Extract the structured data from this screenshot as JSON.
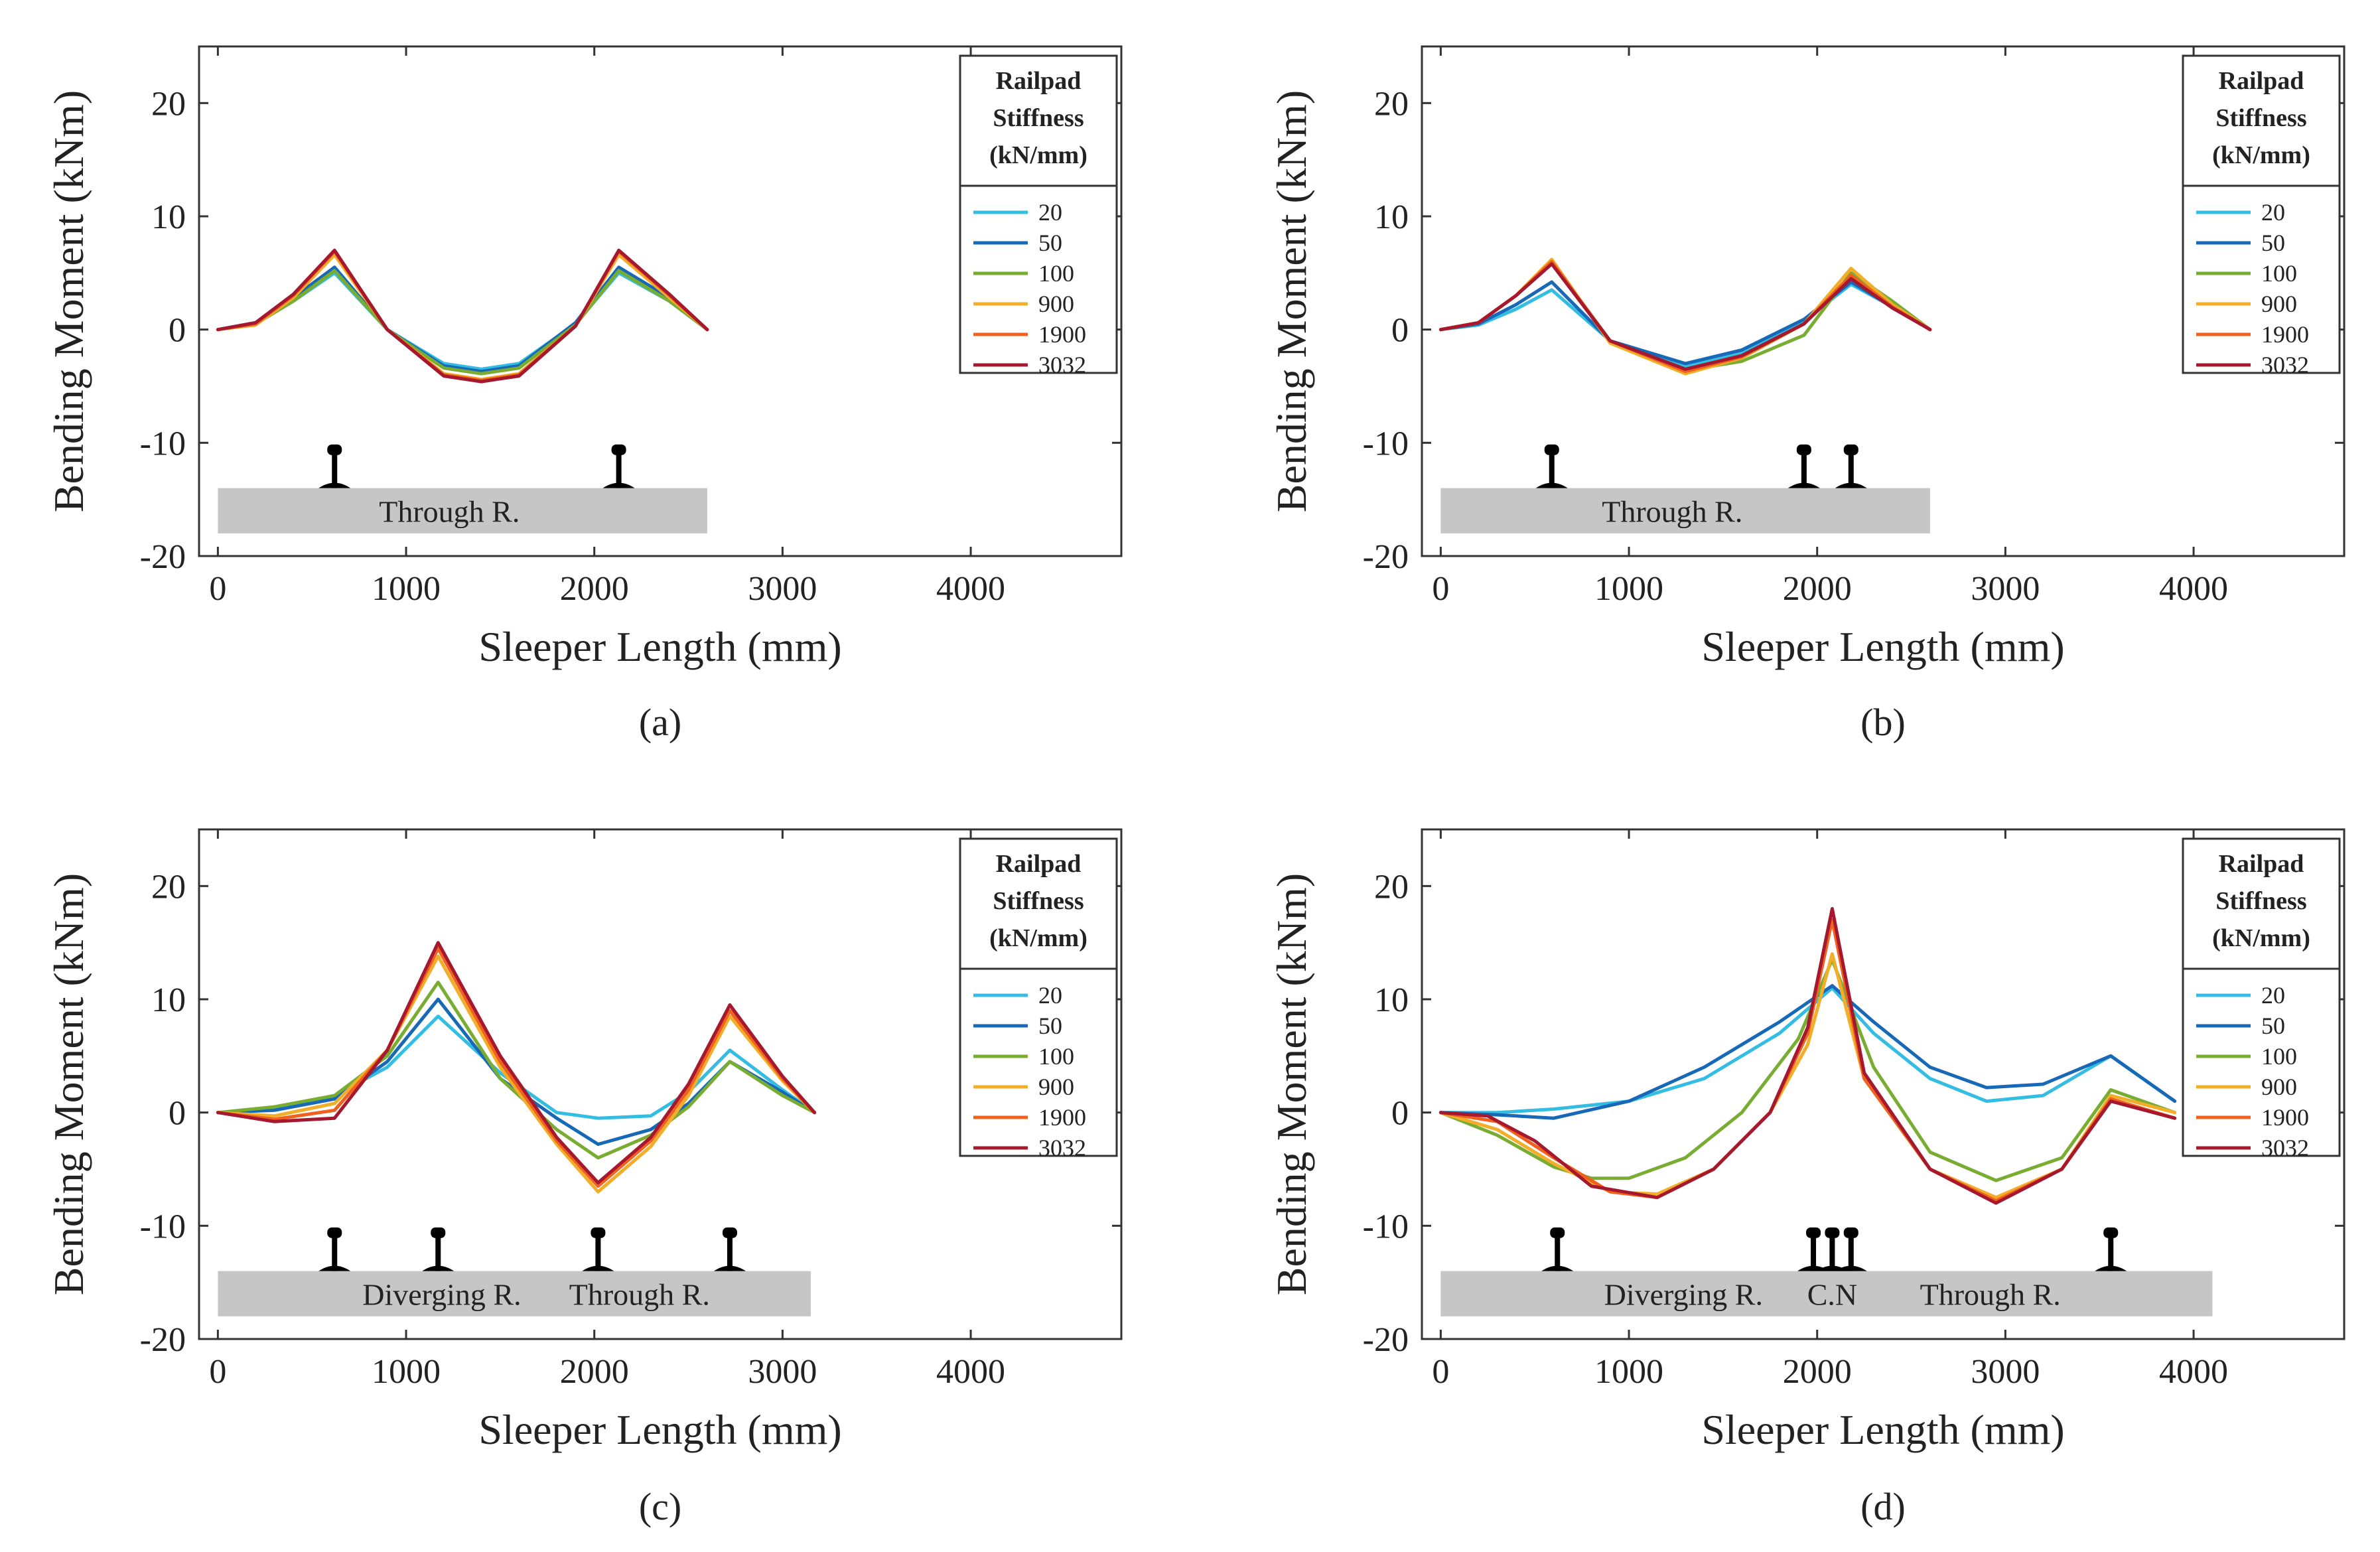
{
  "figure": {
    "legend_title": [
      "Railpad",
      "Stiffness",
      "(kN/mm)"
    ]
  },
  "chart_data": [
    {
      "type": "line",
      "caption": "(a)",
      "xlabel": "Sleeper Length (mm)",
      "ylabel": "Bending Moment (kNm)",
      "xlim": [
        -100,
        4800
      ],
      "ylim": [
        -20,
        25
      ],
      "xticks": [
        0,
        1000,
        2000,
        3000,
        4000
      ],
      "yticks": [
        -20,
        -10,
        0,
        10,
        20
      ],
      "legend_title": "Railpad Stiffness (kN/mm)",
      "sleeper_bar": {
        "x_start": 0,
        "x_end": 2600,
        "labels": [
          {
            "text": "Through R.",
            "x": 1230
          }
        ]
      },
      "rail_positions": [
        620,
        2130
      ],
      "series": [
        {
          "name": "20",
          "color": "#33bde3",
          "x": [
            0,
            200,
            400,
            620,
            900,
            1200,
            1400,
            1600,
            1900,
            2130,
            2400,
            2600
          ],
          "y": [
            0,
            0.5,
            2.5,
            5.0,
            0,
            -3.0,
            -3.5,
            -3.0,
            0.5,
            5.0,
            2.5,
            0
          ]
        },
        {
          "name": "50",
          "color": "#1769b8",
          "x": [
            0,
            200,
            400,
            620,
            900,
            1200,
            1400,
            1600,
            1900,
            2130,
            2400,
            2600
          ],
          "y": [
            0,
            0.6,
            2.8,
            5.5,
            0,
            -3.2,
            -3.7,
            -3.2,
            0.6,
            5.5,
            2.8,
            0
          ]
        },
        {
          "name": "100",
          "color": "#79ad32",
          "x": [
            0,
            200,
            400,
            620,
            900,
            1200,
            1400,
            1600,
            1900,
            2130,
            2400,
            2600
          ],
          "y": [
            0,
            0.5,
            2.5,
            5.2,
            0,
            -3.4,
            -3.9,
            -3.4,
            0.4,
            5.2,
            2.5,
            0
          ]
        },
        {
          "name": "900",
          "color": "#f2ae28",
          "x": [
            0,
            200,
            400,
            620,
            900,
            1200,
            1400,
            1600,
            1900,
            2130,
            2400,
            2600
          ],
          "y": [
            0,
            0.4,
            2.8,
            6.6,
            0,
            -3.9,
            -4.4,
            -3.9,
            0.3,
            6.6,
            2.8,
            0
          ]
        },
        {
          "name": "1900",
          "color": "#f0601f",
          "x": [
            0,
            200,
            400,
            620,
            900,
            1200,
            1400,
            1600,
            1900,
            2130,
            2400,
            2600
          ],
          "y": [
            0,
            0.5,
            3.0,
            6.9,
            0,
            -4.0,
            -4.5,
            -4.0,
            0.3,
            6.9,
            3.0,
            0
          ]
        },
        {
          "name": "3032",
          "color": "#a6182d",
          "x": [
            0,
            200,
            400,
            620,
            900,
            1200,
            1400,
            1600,
            1900,
            2130,
            2400,
            2600
          ],
          "y": [
            0,
            0.6,
            3.1,
            7.0,
            0,
            -4.1,
            -4.6,
            -4.1,
            0.3,
            7.0,
            3.1,
            0
          ]
        }
      ]
    },
    {
      "type": "line",
      "caption": "(b)",
      "xlabel": "Sleeper Length (mm)",
      "ylabel": "Bending Moment (kNm)",
      "xlim": [
        -100,
        4800
      ],
      "ylim": [
        -20,
        25
      ],
      "xticks": [
        0,
        1000,
        2000,
        3000,
        4000
      ],
      "yticks": [
        -20,
        -10,
        0,
        10,
        20
      ],
      "legend_title": "Railpad Stiffness (kN/mm)",
      "sleeper_bar": {
        "x_start": 0,
        "x_end": 2600,
        "labels": [
          {
            "text": "Through R.",
            "x": 1230
          }
        ]
      },
      "rail_positions": [
        590,
        1930,
        2180
      ],
      "series": [
        {
          "name": "20",
          "color": "#33bde3",
          "x": [
            0,
            200,
            400,
            590,
            900,
            1300,
            1600,
            1930,
            2180,
            2400,
            2600
          ],
          "y": [
            0,
            0.4,
            1.8,
            3.5,
            -1.0,
            -3.2,
            -2.0,
            0.8,
            4.0,
            2.0,
            0
          ]
        },
        {
          "name": "50",
          "color": "#1769b8",
          "x": [
            0,
            200,
            400,
            590,
            900,
            1300,
            1600,
            1930,
            2180,
            2400,
            2600
          ],
          "y": [
            0,
            0.5,
            2.2,
            4.2,
            -1.0,
            -3.0,
            -1.8,
            0.9,
            4.2,
            2.0,
            0
          ]
        },
        {
          "name": "100",
          "color": "#79ad32",
          "x": [
            0,
            200,
            400,
            590,
            900,
            1300,
            1600,
            1930,
            2180,
            2400,
            2600
          ],
          "y": [
            0,
            0.6,
            3.0,
            6.0,
            -1.0,
            -3.6,
            -2.8,
            -0.5,
            5.0,
            2.5,
            0
          ]
        },
        {
          "name": "900",
          "color": "#f2ae28",
          "x": [
            0,
            200,
            400,
            590,
            900,
            1300,
            1600,
            1930,
            2180,
            2400,
            2600
          ],
          "y": [
            0,
            0.6,
            3.0,
            6.2,
            -1.2,
            -3.9,
            -2.5,
            0.5,
            5.4,
            2.2,
            0
          ]
        },
        {
          "name": "1900",
          "color": "#f0601f",
          "x": [
            0,
            200,
            400,
            590,
            900,
            1300,
            1600,
            1930,
            2180,
            2400,
            2600
          ],
          "y": [
            0,
            0.6,
            3.0,
            6.0,
            -1.0,
            -3.7,
            -2.4,
            0.5,
            4.8,
            2.0,
            0
          ]
        },
        {
          "name": "3032",
          "color": "#a6182d",
          "x": [
            0,
            200,
            400,
            590,
            900,
            1300,
            1600,
            1930,
            2180,
            2400,
            2600
          ],
          "y": [
            0,
            0.6,
            3.0,
            5.8,
            -1.0,
            -3.5,
            -2.3,
            0.5,
            4.5,
            1.9,
            0
          ]
        }
      ]
    },
    {
      "type": "line",
      "caption": "(c)",
      "xlabel": "Sleeper Length (mm)",
      "ylabel": "Bending Moment (kNm)",
      "xlim": [
        -100,
        4800
      ],
      "ylim": [
        -20,
        25
      ],
      "xticks": [
        0,
        1000,
        2000,
        3000,
        4000
      ],
      "yticks": [
        -20,
        -10,
        0,
        10,
        20
      ],
      "legend_title": "Railpad Stiffness (kN/mm)",
      "sleeper_bar": {
        "x_start": 0,
        "x_end": 3150,
        "labels": [
          {
            "text": "Diverging R.",
            "x": 1190
          },
          {
            "text": "Through R.",
            "x": 2240
          }
        ]
      },
      "rail_positions": [
        620,
        1170,
        2020,
        2720
      ],
      "series": [
        {
          "name": "20",
          "color": "#33bde3",
          "x": [
            0,
            300,
            620,
            900,
            1170,
            1500,
            1800,
            2020,
            2300,
            2500,
            2720,
            3000,
            3170
          ],
          "y": [
            0,
            0.3,
            1.5,
            4.0,
            8.5,
            3.5,
            0,
            -0.5,
            -0.3,
            1.8,
            5.5,
            2.0,
            0
          ]
        },
        {
          "name": "50",
          "color": "#1769b8",
          "x": [
            0,
            300,
            620,
            900,
            1170,
            1500,
            1800,
            2020,
            2300,
            2500,
            2720,
            3000,
            3170
          ],
          "y": [
            0,
            0.2,
            1.2,
            4.5,
            10.0,
            3.0,
            -0.5,
            -2.8,
            -1.5,
            0.8,
            4.5,
            1.8,
            0
          ]
        },
        {
          "name": "100",
          "color": "#79ad32",
          "x": [
            0,
            300,
            620,
            900,
            1170,
            1500,
            1800,
            2020,
            2300,
            2500,
            2720,
            3000,
            3170
          ],
          "y": [
            0,
            0.5,
            1.5,
            5.0,
            11.5,
            3.0,
            -1.5,
            -4.0,
            -2.0,
            0.5,
            4.5,
            1.5,
            0
          ]
        },
        {
          "name": "900",
          "color": "#f2ae28",
          "x": [
            0,
            300,
            620,
            900,
            1170,
            1500,
            1800,
            2020,
            2300,
            2500,
            2720,
            3000,
            3170
          ],
          "y": [
            0,
            -0.3,
            0.8,
            5.5,
            13.8,
            4.0,
            -2.8,
            -7.0,
            -3.0,
            1.5,
            8.5,
            2.8,
            0
          ]
        },
        {
          "name": "1900",
          "color": "#f0601f",
          "x": [
            0,
            300,
            620,
            900,
            1170,
            1500,
            1800,
            2020,
            2300,
            2500,
            2720,
            3000,
            3170
          ],
          "y": [
            0,
            -0.6,
            0.2,
            5.5,
            14.5,
            4.5,
            -2.5,
            -6.5,
            -2.5,
            2.0,
            9.0,
            3.0,
            0
          ]
        },
        {
          "name": "3032",
          "color": "#a6182d",
          "x": [
            0,
            300,
            620,
            900,
            1170,
            1500,
            1800,
            2020,
            2300,
            2500,
            2720,
            3000,
            3170
          ],
          "y": [
            0,
            -0.8,
            -0.5,
            5.5,
            15.0,
            5.0,
            -2.2,
            -6.2,
            -2.2,
            2.5,
            9.5,
            3.2,
            0
          ]
        }
      ]
    },
    {
      "type": "line",
      "caption": "(d)",
      "xlabel": "Sleeper Length (mm)",
      "ylabel": "Bending Moment (kNm)",
      "xlim": [
        -100,
        4800
      ],
      "ylim": [
        -20,
        25
      ],
      "xticks": [
        0,
        1000,
        2000,
        3000,
        4000
      ],
      "yticks": [
        -20,
        -10,
        0,
        10,
        20
      ],
      "legend_title": "Railpad Stiffness (kN/mm)",
      "sleeper_bar": {
        "x_start": 0,
        "x_end": 4100,
        "labels": [
          {
            "text": "Diverging R.",
            "x": 1290
          },
          {
            "text": "C.N",
            "x": 2080
          },
          {
            "text": "Through R.",
            "x": 2920
          }
        ]
      },
      "rail_positions": [
        620,
        1980,
        2080,
        2180,
        3560
      ],
      "series": [
        {
          "name": "20",
          "color": "#33bde3",
          "x": [
            0,
            300,
            600,
            1000,
            1400,
            1800,
            2080,
            2300,
            2600,
            2900,
            3200,
            3560,
            3900
          ],
          "y": [
            0,
            0,
            0.3,
            1.0,
            3.0,
            7.0,
            11.0,
            7.0,
            3.0,
            1.0,
            1.5,
            5.0,
            1.0
          ]
        },
        {
          "name": "50",
          "color": "#1769b8",
          "x": [
            0,
            300,
            600,
            1000,
            1400,
            1800,
            2080,
            2300,
            2600,
            2900,
            3200,
            3560,
            3900
          ],
          "y": [
            0,
            -0.2,
            -0.5,
            1.0,
            4.0,
            8.0,
            11.2,
            8.0,
            4.0,
            2.2,
            2.5,
            5.0,
            1.0
          ]
        },
        {
          "name": "100",
          "color": "#79ad32",
          "x": [
            0,
            300,
            600,
            800,
            1000,
            1300,
            1600,
            1900,
            2080,
            2300,
            2600,
            2950,
            3300,
            3560,
            3900
          ],
          "y": [
            0,
            -2.0,
            -4.8,
            -5.8,
            -5.8,
            -4.0,
            0,
            6.5,
            13.5,
            4.0,
            -3.5,
            -6.0,
            -4.0,
            2.0,
            0
          ]
        },
        {
          "name": "900",
          "color": "#f2ae28",
          "x": [
            0,
            300,
            600,
            900,
            1150,
            1450,
            1750,
            1950,
            2080,
            2250,
            2600,
            2950,
            3300,
            3560,
            3900
          ],
          "y": [
            0,
            -1.5,
            -4.5,
            -7.0,
            -7.2,
            -5.0,
            0,
            6.0,
            14.0,
            3.0,
            -5.0,
            -7.5,
            -5.0,
            1.5,
            0
          ]
        },
        {
          "name": "1900",
          "color": "#f0601f",
          "x": [
            0,
            300,
            600,
            900,
            1150,
            1450,
            1750,
            1950,
            2080,
            2250,
            2600,
            2950,
            3300,
            3560,
            3900
          ],
          "y": [
            0,
            -0.8,
            -4.0,
            -7.0,
            -7.5,
            -5.0,
            0,
            7.0,
            17.0,
            3.0,
            -5.0,
            -7.8,
            -5.0,
            1.2,
            -0.5
          ]
        },
        {
          "name": "3032",
          "color": "#a6182d",
          "x": [
            0,
            250,
            500,
            800,
            1150,
            1450,
            1750,
            1950,
            2080,
            2250,
            2600,
            2950,
            3300,
            3560,
            3900
          ],
          "y": [
            0,
            -0.3,
            -2.5,
            -6.5,
            -7.5,
            -5.0,
            0,
            7.5,
            18.0,
            3.5,
            -5.0,
            -8.0,
            -5.0,
            1.0,
            -0.5
          ]
        }
      ]
    }
  ]
}
